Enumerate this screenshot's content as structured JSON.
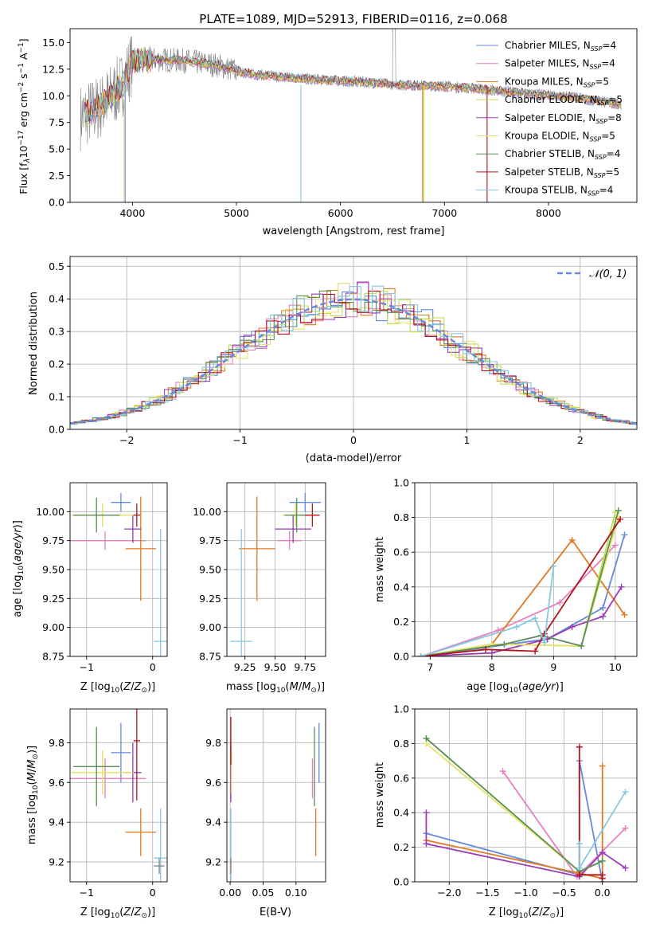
{
  "figure": {
    "title": "PLATE=1089, MJD=52913, FIBERID=0116, z=0.068"
  },
  "colors": [
    "#6688dd",
    "#e67ec0",
    "#e07a1f",
    "#bfe045",
    "#9b3bb5",
    "#e8e26a",
    "#5a8f5a",
    "#b3121e",
    "#86c8e0",
    "#808080"
  ],
  "chart_data": [
    {
      "id": "spectrum",
      "type": "line",
      "title": "PLATE=1089, MJD=52913, FIBERID=0116, z=0.068",
      "xlabel": "wavelength [Angstrom, rest frame]",
      "ylabel": "Flux [fλ10⁻¹⁷ erg cm⁻² s⁻¹ A⁻¹]",
      "xlim": [
        3400,
        8850
      ],
      "ylim": [
        0,
        16.3
      ],
      "xticks": [
        4000,
        5000,
        6000,
        7000,
        8000
      ],
      "yticks": [
        "0.0",
        "2.5",
        "5.0",
        "7.5",
        "10.0",
        "12.5",
        "15.0"
      ],
      "grid": false,
      "legend_position": "top-right",
      "series": [
        {
          "name": "Chabrier MILES, NSSP=4",
          "label": "Chabrier MILES, N",
          "sub": "SSP",
          "suffix": "=4"
        },
        {
          "name": "Salpeter MILES, NSSP=4",
          "label": "Salpeter MILES, N",
          "sub": "SSP",
          "suffix": "=4"
        },
        {
          "name": "Kroupa MILES, NSSP=5",
          "label": "Kroupa MILES, N",
          "sub": "SSP",
          "suffix": "=5"
        },
        {
          "name": "Chabrier ELODIE, NSSP=5",
          "label": "Chabrier ELODIE, N",
          "sub": "SSP",
          "suffix": "=5"
        },
        {
          "name": "Salpeter ELODIE, NSSP=8",
          "label": "Salpeter ELODIE, N",
          "sub": "SSP",
          "suffix": "=8"
        },
        {
          "name": "Kroupa ELODIE, NSSP=5",
          "label": "Kroupa ELODIE, N",
          "sub": "SSP",
          "suffix": "=5"
        },
        {
          "name": "Chabrier STELIB, NSSP=4",
          "label": "Chabrier STELIB, N",
          "sub": "SSP",
          "suffix": "=4"
        },
        {
          "name": "Salpeter STELIB, NSSP=5",
          "label": "Salpeter STELIB, N",
          "sub": "SSP",
          "suffix": "=5"
        },
        {
          "name": "Kroupa STELIB, NSSP=4",
          "label": "Kroupa STELIB, N",
          "sub": "SSP",
          "suffix": "=4"
        }
      ],
      "continuum": {
        "x": [
          3500,
          3700,
          3900,
          4000,
          4200,
          4500,
          4800,
          5100,
          5400,
          5800,
          6200,
          6600,
          7000,
          7400,
          7800,
          8200,
          8700
        ],
        "y": [
          8.0,
          9.0,
          11.0,
          13.2,
          13.4,
          13.3,
          12.9,
          12.1,
          11.8,
          11.5,
          11.3,
          11.0,
          10.9,
          10.6,
          10.2,
          9.9,
          9.2
        ]
      }
    },
    {
      "id": "residuals",
      "type": "line",
      "xlabel": "(data-model)/error",
      "ylabel": "Normed distribution",
      "xlim": [
        -2.5,
        2.5
      ],
      "ylim": [
        0,
        0.53
      ],
      "xticks": [
        "−2",
        "−1",
        "0",
        "1",
        "2"
      ],
      "yticks": [
        "0.0",
        "0.1",
        "0.2",
        "0.3",
        "0.4",
        "0.5"
      ],
      "grid": true,
      "legend_position": "top-right",
      "reference_curve": {
        "name": "𝒩(0, 1)",
        "mean": 0,
        "sigma": 1
      }
    },
    {
      "id": "age_vs_Z",
      "type": "scatter",
      "xlabel": "Z [log₁₀(Z/Z⊙)]",
      "ylabel": "age  [log₁₀(age/yr)]",
      "xlim": [
        -1.25,
        0.22
      ],
      "ylim": [
        8.75,
        10.25
      ],
      "xticks": [
        "−1",
        "0"
      ],
      "yticks": [
        "8.75",
        "9.00",
        "9.25",
        "9.50",
        "9.75",
        "10.00"
      ],
      "grid": true,
      "points": [
        {
          "x": -0.48,
          "y": 10.08,
          "xerr": 0.15,
          "yerr": 0.08
        },
        {
          "x": -0.72,
          "y": 9.75,
          "xerr": 0.62,
          "yerr": 0.08
        },
        {
          "x": -0.18,
          "y": 9.68,
          "xerr": 0.23,
          "yerr": 0.45
        },
        {
          "x": -0.76,
          "y": 9.97,
          "xerr": 0.47,
          "yerr": 0.1
        },
        {
          "x": -0.3,
          "y": 9.85,
          "xerr": 0.13,
          "yerr": 0.12
        },
        {
          "x": -0.76,
          "y": 9.97,
          "xerr": 0.47,
          "yerr": 0.1
        },
        {
          "x": -0.85,
          "y": 9.97,
          "xerr": 0.35,
          "yerr": 0.15
        },
        {
          "x": -0.24,
          "y": 9.97,
          "xerr": 0.05,
          "yerr": 0.1
        },
        {
          "x": 0.12,
          "y": 8.88,
          "xerr": 0.1,
          "yerr": 0.97
        }
      ]
    },
    {
      "id": "age_vs_mass",
      "type": "scatter",
      "xlabel": "mass [log₁₀(M/M⊙)]",
      "ylabel": "",
      "xlim": [
        9.1,
        9.92
      ],
      "ylim": [
        8.75,
        10.25
      ],
      "xticks": [
        "9.25",
        "9.50",
        "9.75"
      ],
      "yticks": [
        "8.75",
        "9.00",
        "9.25",
        "9.50",
        "9.75",
        "10.00"
      ],
      "grid": true,
      "points": [
        {
          "x": 9.75,
          "y": 10.08,
          "xerr": 0.13,
          "yerr": 0.08
        },
        {
          "x": 9.62,
          "y": 9.75,
          "xerr": 0.1,
          "yerr": 0.08
        },
        {
          "x": 9.35,
          "y": 9.68,
          "xerr": 0.15,
          "yerr": 0.45
        },
        {
          "x": 9.67,
          "y": 9.97,
          "xerr": 0.11,
          "yerr": 0.1
        },
        {
          "x": 9.65,
          "y": 9.85,
          "xerr": 0.15,
          "yerr": 0.12
        },
        {
          "x": 9.67,
          "y": 9.97,
          "xerr": 0.11,
          "yerr": 0.1
        },
        {
          "x": 9.68,
          "y": 9.97,
          "xerr": 0.1,
          "yerr": 0.15
        },
        {
          "x": 9.81,
          "y": 9.97,
          "xerr": 0.06,
          "yerr": 0.1
        },
        {
          "x": 9.22,
          "y": 8.88,
          "xerr": 0.09,
          "yerr": 0.97
        }
      ]
    },
    {
      "id": "weight_vs_age",
      "type": "line",
      "xlabel": "age  [log₁₀(age/yr)]",
      "ylabel": "mass weight",
      "xlim": [
        6.75,
        10.35
      ],
      "ylim": [
        0,
        1.0
      ],
      "xticks": [
        "7",
        "8",
        "9",
        "10"
      ],
      "yticks": [
        "0.0",
        "0.2",
        "0.4",
        "0.6",
        "0.8",
        "1.0"
      ],
      "grid": true,
      "series": [
        {
          "x": [
            6.85,
            8.9,
            9.8,
            10.15
          ],
          "y": [
            0.0,
            0.1,
            0.28,
            0.7
          ]
        },
        {
          "x": [
            6.85,
            8.1,
            9.1,
            10.0
          ],
          "y": [
            0.0,
            0.15,
            0.31,
            0.64
          ]
        },
        {
          "x": [
            6.85,
            8.0,
            9.3,
            10.15
          ],
          "y": [
            0.0,
            0.07,
            0.67,
            0.24
          ]
        },
        {
          "x": [
            6.85,
            8.0,
            9.45,
            10.0
          ],
          "y": [
            0.0,
            0.07,
            0.06,
            0.83
          ]
        },
        {
          "x": [
            6.85,
            8.0,
            8.9,
            9.3,
            9.8,
            10.1
          ],
          "y": [
            0.0,
            0.02,
            0.1,
            0.17,
            0.23,
            0.4
          ]
        },
        {
          "x": [
            6.85,
            8.0,
            9.45,
            10.05
          ],
          "y": [
            0.0,
            0.07,
            0.06,
            0.8
          ]
        },
        {
          "x": [
            6.85,
            8.2,
            8.8,
            9.45,
            10.05
          ],
          "y": [
            0.0,
            0.07,
            0.12,
            0.06,
            0.84
          ]
        },
        {
          "x": [
            6.85,
            7.9,
            8.7,
            8.85,
            10.08
          ],
          "y": [
            0.0,
            0.04,
            0.03,
            0.13,
            0.79
          ]
        },
        {
          "x": [
            6.85,
            8.4,
            8.7,
            8.85,
            9.0
          ],
          "y": [
            0.0,
            0.17,
            0.22,
            0.08,
            0.52
          ]
        }
      ]
    },
    {
      "id": "mass_vs_Z",
      "type": "scatter",
      "xlabel": "Z [log₁₀(Z/Z⊙)]",
      "ylabel": "mass [log₁₀(M/M⊙)]",
      "xlim": [
        -1.25,
        0.22
      ],
      "ylim": [
        9.1,
        9.97
      ],
      "xticks": [
        "−1",
        "0"
      ],
      "yticks": [
        "9.2",
        "9.4",
        "9.6",
        "9.8"
      ],
      "grid": true,
      "points": [
        {
          "x": -0.48,
          "y": 9.75,
          "xerr": 0.15,
          "yerr": 0.15
        },
        {
          "x": -0.72,
          "y": 9.62,
          "xerr": 0.62,
          "yerr": 0.1
        },
        {
          "x": -0.18,
          "y": 9.35,
          "xerr": 0.23,
          "yerr": 0.12
        },
        {
          "x": -0.76,
          "y": 9.65,
          "xerr": 0.47,
          "yerr": 0.11
        },
        {
          "x": -0.3,
          "y": 9.65,
          "xerr": 0.13,
          "yerr": 0.15
        },
        {
          "x": -0.76,
          "y": 9.65,
          "xerr": 0.47,
          "yerr": 0.11
        },
        {
          "x": -0.85,
          "y": 9.68,
          "xerr": 0.35,
          "yerr": 0.2
        },
        {
          "x": -0.24,
          "y": 9.81,
          "xerr": 0.05,
          "yerr": 0.3
        },
        {
          "x": 0.12,
          "y": 9.22,
          "xerr": 0.1,
          "yerr": 0.25
        },
        {
          "x": 0.1,
          "y": 9.18,
          "xerr": 0.08,
          "yerr": 0.04
        }
      ]
    },
    {
      "id": "mass_vs_ebv",
      "type": "scatter",
      "xlabel": "E(B-V)",
      "ylabel": "",
      "xlim": [
        -0.005,
        0.145
      ],
      "ylim": [
        9.1,
        9.97
      ],
      "xticks": [
        "0.00",
        "0.05",
        "0.10"
      ],
      "yticks": [
        "9.2",
        "9.4",
        "9.6",
        "9.8"
      ],
      "grid": true,
      "points": [
        {
          "x": 0.135,
          "y": 9.75,
          "yerr": 0.15
        },
        {
          "x": 0.125,
          "y": 9.62,
          "yerr": 0.1
        },
        {
          "x": 0.13,
          "y": 9.35,
          "yerr": 0.12
        },
        {
          "x": 0.001,
          "y": 9.65,
          "yerr": 0.11
        },
        {
          "x": 0.001,
          "y": 9.65,
          "yerr": 0.15
        },
        {
          "x": 0.002,
          "y": 9.65,
          "yerr": 0.11
        },
        {
          "x": 0.128,
          "y": 9.68,
          "yerr": 0.2
        },
        {
          "x": 0.001,
          "y": 9.81,
          "yerr": 0.12
        },
        {
          "x": 0.001,
          "y": 9.22,
          "yerr": 0.25
        },
        {
          "x": 0.001,
          "y": 9.18,
          "yerr": 0.04
        }
      ]
    },
    {
      "id": "weight_vs_Z",
      "type": "line",
      "xlabel": "Z [log₁₀(Z/Z⊙)]",
      "ylabel": "mass weight",
      "xlim": [
        -2.45,
        0.45
      ],
      "ylim": [
        0,
        1.0
      ],
      "xticks": [
        "−2.0",
        "−1.5",
        "−1.0",
        "−0.5",
        "0.0"
      ],
      "yticks": [
        "0.0",
        "0.2",
        "0.4",
        "0.6",
        "0.8",
        "1.0"
      ],
      "grid": true,
      "series": [
        {
          "x": [
            -2.3,
            -0.3,
            -0.3,
            0.0
          ],
          "y": [
            0.28,
            0.04,
            0.7,
            0.0
          ]
        },
        {
          "x": [
            -1.3,
            -0.33,
            0.3
          ],
          "y": [
            0.64,
            0.03,
            0.31
          ]
        },
        {
          "x": [
            -2.3,
            -0.3,
            0.0,
            0.0
          ],
          "y": [
            0.24,
            0.05,
            0.02,
            0.67
          ]
        },
        {
          "x": [
            -2.3,
            -0.3,
            0.0
          ],
          "y": [
            0.83,
            0.06,
            0.12
          ]
        },
        {
          "x": [
            -2.3,
            -2.3,
            -0.3,
            0.0,
            0.3
          ],
          "y": [
            0.4,
            0.22,
            0.03,
            0.17,
            0.08
          ]
        },
        {
          "x": [
            -2.3,
            -0.3,
            0.0
          ],
          "y": [
            0.8,
            0.06,
            0.12
          ]
        },
        {
          "x": [
            -2.3,
            -0.3,
            0.0
          ],
          "y": [
            0.83,
            0.06,
            0.12
          ]
        },
        {
          "x": [
            -0.3,
            -0.3,
            0.0,
            0.0
          ],
          "y": [
            0.78,
            0.04,
            0.04,
            0.02
          ]
        },
        {
          "x": [
            -0.3,
            -0.3,
            0.3
          ],
          "y": [
            0.22,
            0.08,
            0.52
          ]
        }
      ]
    }
  ]
}
